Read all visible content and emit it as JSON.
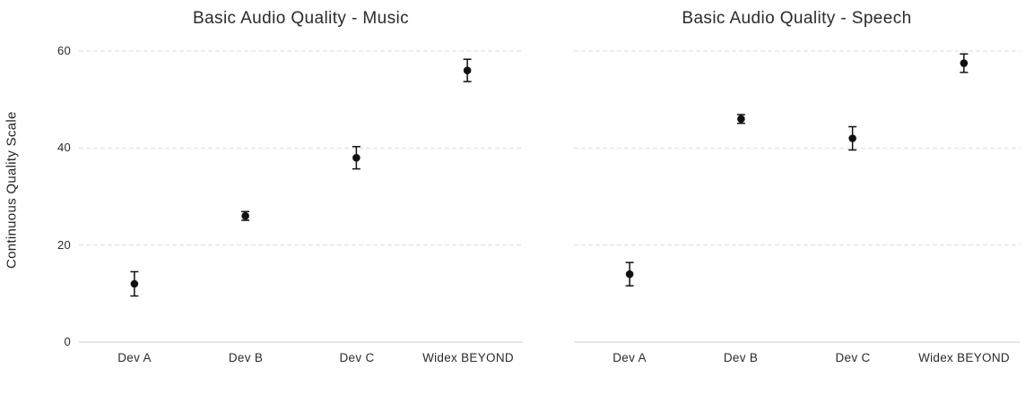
{
  "figure": {
    "y_axis_title": "Continuous Quality Scale",
    "background_color": "#ffffff",
    "text_color": "#2b2b2b",
    "gridline_color": "#dddddd",
    "axis_line_color": "#cccccc",
    "marker_color": "#111111"
  },
  "chart_data": [
    {
      "type": "scatter",
      "title": "Basic Audio Quality - Music",
      "categories": [
        "Dev A",
        "Dev B",
        "Dev C",
        "Widex BEYOND"
      ],
      "values": [
        12,
        26,
        38,
        56
      ],
      "errors": [
        2.5,
        0.9,
        2.3,
        2.3
      ],
      "error_bars": true,
      "ylabel": "Continuous Quality Scale",
      "yticks": [
        0,
        20,
        40,
        60
      ],
      "ylim": [
        0,
        62
      ],
      "grid": true,
      "legend": "none",
      "marker": "filled-circle"
    },
    {
      "type": "scatter",
      "title": "Basic Audio Quality - Speech",
      "categories": [
        "Dev A",
        "Dev B",
        "Dev C",
        "Widex BEYOND"
      ],
      "values": [
        14,
        46,
        42,
        57.5
      ],
      "errors": [
        2.4,
        0.9,
        2.4,
        1.9
      ],
      "error_bars": true,
      "ylabel": "",
      "yticks": [
        0,
        20,
        40,
        60
      ],
      "ylim": [
        0,
        62
      ],
      "grid": true,
      "legend": "none",
      "marker": "filled-circle"
    }
  ]
}
